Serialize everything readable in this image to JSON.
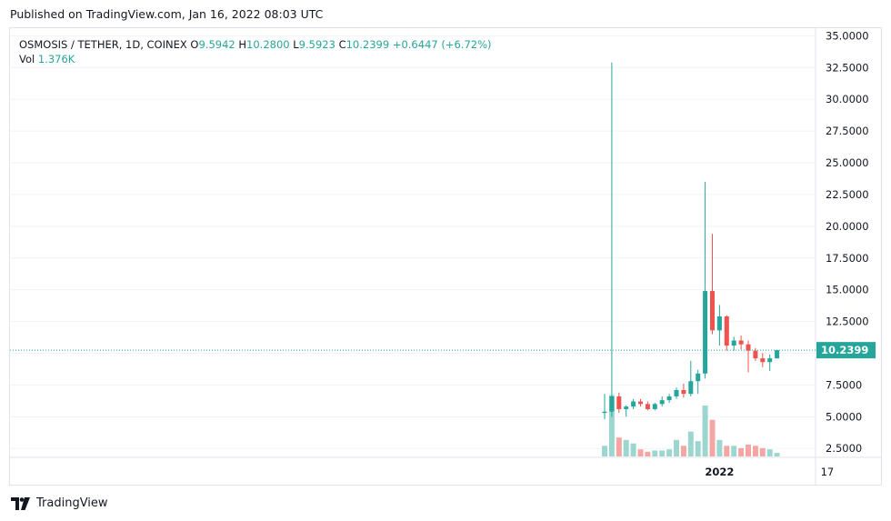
{
  "header": {
    "published": "Published on TradingView.com, Jan 16, 2022 08:03 UTC"
  },
  "legend": {
    "symbol": "OSMOSIS / TETHER, 1D, COINEX",
    "o_label": "O",
    "o_value": "9.5942",
    "h_label": "H",
    "h_value": "10.2800",
    "l_label": "L",
    "l_value": "9.5923",
    "c_label": "C",
    "c_value": "10.2399",
    "change": "+0.6447 (+6.72%)",
    "vol_label": "Vol",
    "vol_value": "1.376K"
  },
  "footer": {
    "brand": "TradingView"
  },
  "colors": {
    "up": "#26a69a",
    "down": "#ef5350",
    "up_vol": "#9dd6cf",
    "down_vol": "#f3a6a4",
    "grid": "#f0f3fa"
  },
  "chart_data": {
    "type": "candlestick",
    "y_ticks": [
      "35.0000",
      "32.5000",
      "30.0000",
      "27.5000",
      "25.0000",
      "22.5000",
      "20.0000",
      "17.5000",
      "15.0000",
      "12.5000",
      "10.0000",
      "7.5000",
      "5.0000",
      "2.5000"
    ],
    "ylim": [
      1.8,
      35.6
    ],
    "x_ticks": [
      {
        "label": "2022",
        "index": 16,
        "bold": true
      },
      {
        "label": "17",
        "index": 31,
        "bold": false
      }
    ],
    "last_price": "10.2399",
    "candles": [
      {
        "o": 5.3,
        "h": 6.8,
        "l": 4.8,
        "c": 5.4,
        "v": 0.9
      },
      {
        "o": 5.4,
        "h": 32.9,
        "l": 5.0,
        "c": 6.6,
        "v": 5.2
      },
      {
        "o": 6.6,
        "h": 6.9,
        "l": 5.3,
        "c": 5.6,
        "v": 1.6
      },
      {
        "o": 5.6,
        "h": 5.9,
        "l": 5.0,
        "c": 5.8,
        "v": 1.4
      },
      {
        "o": 5.8,
        "h": 6.4,
        "l": 5.6,
        "c": 6.2,
        "v": 1.1
      },
      {
        "o": 6.2,
        "h": 6.4,
        "l": 5.8,
        "c": 6.0,
        "v": 0.6
      },
      {
        "o": 6.0,
        "h": 6.2,
        "l": 5.5,
        "c": 5.6,
        "v": 0.4
      },
      {
        "o": 5.6,
        "h": 6.1,
        "l": 5.5,
        "c": 6.0,
        "v": 0.5
      },
      {
        "o": 6.0,
        "h": 6.6,
        "l": 5.8,
        "c": 6.3,
        "v": 0.5
      },
      {
        "o": 6.3,
        "h": 6.8,
        "l": 6.1,
        "c": 6.6,
        "v": 0.6
      },
      {
        "o": 6.6,
        "h": 7.3,
        "l": 6.4,
        "c": 7.1,
        "v": 1.4
      },
      {
        "o": 7.1,
        "h": 7.6,
        "l": 6.5,
        "c": 6.8,
        "v": 0.9
      },
      {
        "o": 6.8,
        "h": 9.4,
        "l": 6.6,
        "c": 7.8,
        "v": 2.1
      },
      {
        "o": 7.8,
        "h": 8.7,
        "l": 6.8,
        "c": 8.4,
        "v": 1.3
      },
      {
        "o": 8.4,
        "h": 23.5,
        "l": 8.0,
        "c": 14.9,
        "v": 4.3
      },
      {
        "o": 14.9,
        "h": 19.4,
        "l": 11.5,
        "c": 11.8,
        "v": 3.1
      },
      {
        "o": 11.8,
        "h": 13.8,
        "l": 10.6,
        "c": 12.9,
        "v": 1.4
      },
      {
        "o": 12.9,
        "h": 13.0,
        "l": 10.2,
        "c": 10.6,
        "v": 0.9
      },
      {
        "o": 10.6,
        "h": 11.3,
        "l": 10.2,
        "c": 11.0,
        "v": 0.9
      },
      {
        "o": 11.0,
        "h": 11.4,
        "l": 10.3,
        "c": 10.7,
        "v": 0.7
      },
      {
        "o": 10.7,
        "h": 11.0,
        "l": 8.5,
        "c": 10.2,
        "v": 1.0
      },
      {
        "o": 10.2,
        "h": 10.4,
        "l": 9.4,
        "c": 9.6,
        "v": 0.9
      },
      {
        "o": 9.6,
        "h": 10.0,
        "l": 8.9,
        "c": 9.3,
        "v": 0.7
      },
      {
        "o": 9.3,
        "h": 9.9,
        "l": 8.6,
        "c": 9.6,
        "v": 0.6
      },
      {
        "o": 9.5942,
        "h": 10.28,
        "l": 9.5923,
        "c": 10.2399,
        "v": 0.3
      }
    ]
  }
}
